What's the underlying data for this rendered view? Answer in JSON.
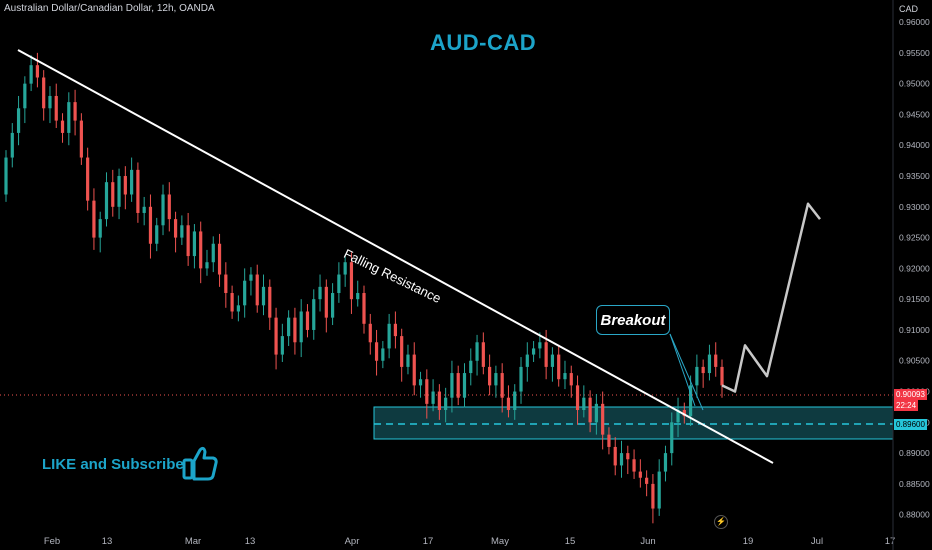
{
  "header": {
    "symbol_line": "Australian Dollar/Canadian Dollar, 12h, OANDA",
    "currency": "CAD"
  },
  "annotations": {
    "title": "AUD-CAD",
    "falling_resistance": "Falling Resistance",
    "breakout": "Breakout",
    "like_subscribe": "LIKE and Subscribe"
  },
  "price_badges": {
    "current_price": "0.90093",
    "countdown": "22:24",
    "zone_price": "0.89600"
  },
  "colors": {
    "background": "#000000",
    "bull": "#26a69a",
    "bear": "#ef5350",
    "accent": "#1ca4c9",
    "zone_fill": "#0e3a40",
    "projection": "#c8c8c8",
    "trendline": "#ffffff"
  },
  "chart_data": {
    "type": "candlestick",
    "title": "AUD-CAD",
    "ylim": [
      0.878,
      0.9605
    ],
    "y_ticks": [
      "0.96000",
      "0.95500",
      "0.95000",
      "0.94500",
      "0.94000",
      "0.93500",
      "0.93000",
      "0.92500",
      "0.92000",
      "0.91500",
      "0.91000",
      "0.90500",
      "0.90000",
      "0.89500",
      "0.89000",
      "0.88500",
      "0.88000"
    ],
    "x_ticks": [
      "Feb",
      "13",
      "Mar",
      "13",
      "Apr",
      "17",
      "May",
      "15",
      "Jun",
      "19",
      "Jul",
      "17"
    ],
    "closes": [
      0.938,
      0.942,
      0.946,
      0.95,
      0.953,
      0.951,
      0.946,
      0.948,
      0.944,
      0.942,
      0.947,
      0.944,
      0.938,
      0.931,
      0.925,
      0.928,
      0.934,
      0.93,
      0.935,
      0.932,
      0.936,
      0.929,
      0.93,
      0.924,
      0.927,
      0.932,
      0.928,
      0.925,
      0.927,
      0.922,
      0.926,
      0.92,
      0.921,
      0.924,
      0.919,
      0.916,
      0.913,
      0.914,
      0.918,
      0.919,
      0.914,
      0.917,
      0.912,
      0.906,
      0.909,
      0.912,
      0.908,
      0.913,
      0.91,
      0.915,
      0.917,
      0.912,
      0.916,
      0.919,
      0.921,
      0.915,
      0.916,
      0.911,
      0.908,
      0.905,
      0.907,
      0.911,
      0.909,
      0.904,
      0.906,
      0.901,
      0.902,
      0.898,
      0.9,
      0.897,
      0.899,
      0.903,
      0.899,
      0.903,
      0.905,
      0.908,
      0.904,
      0.901,
      0.903,
      0.899,
      0.897,
      0.9,
      0.904,
      0.906,
      0.907,
      0.908,
      0.904,
      0.906,
      0.902,
      0.903,
      0.901,
      0.897,
      0.899,
      0.895,
      0.898,
      0.893,
      0.891,
      0.888,
      0.89,
      0.889,
      0.887,
      0.886,
      0.885,
      0.881,
      0.887,
      0.89,
      0.895,
      0.897,
      0.896,
      0.901,
      0.904,
      0.903,
      0.906,
      0.904,
      0.901
    ],
    "resistance_zone": {
      "top": 0.8985,
      "bottom": 0.894,
      "level": 0.896
    },
    "trendline": {
      "from": [
        0,
        0.955
      ],
      "to": [
        125,
        0.89
      ]
    },
    "projection": [
      0.901,
      0.9,
      0.9075,
      0.9025,
      0.9305,
      0.928
    ]
  }
}
